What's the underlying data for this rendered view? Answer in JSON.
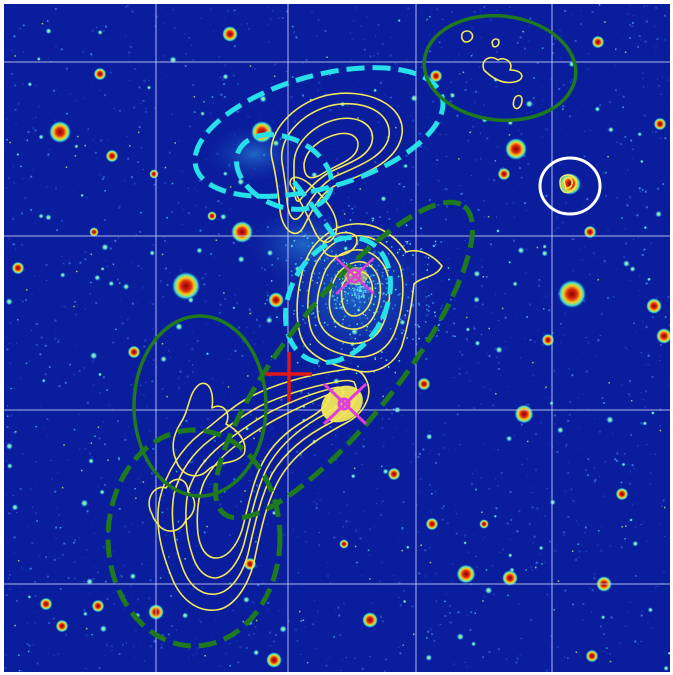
{
  "image": {
    "subject": "astronomical-map",
    "colors": {
      "background": "#0a1d9c",
      "grid": "#c8d2f0",
      "contour": "#f2e85a",
      "cyan_region": "#28e0e8",
      "green_region": "#1f7a1f",
      "white_region": "#ffffff",
      "center_cross": "#e01818",
      "source_marker": "#e040d8"
    }
  }
}
